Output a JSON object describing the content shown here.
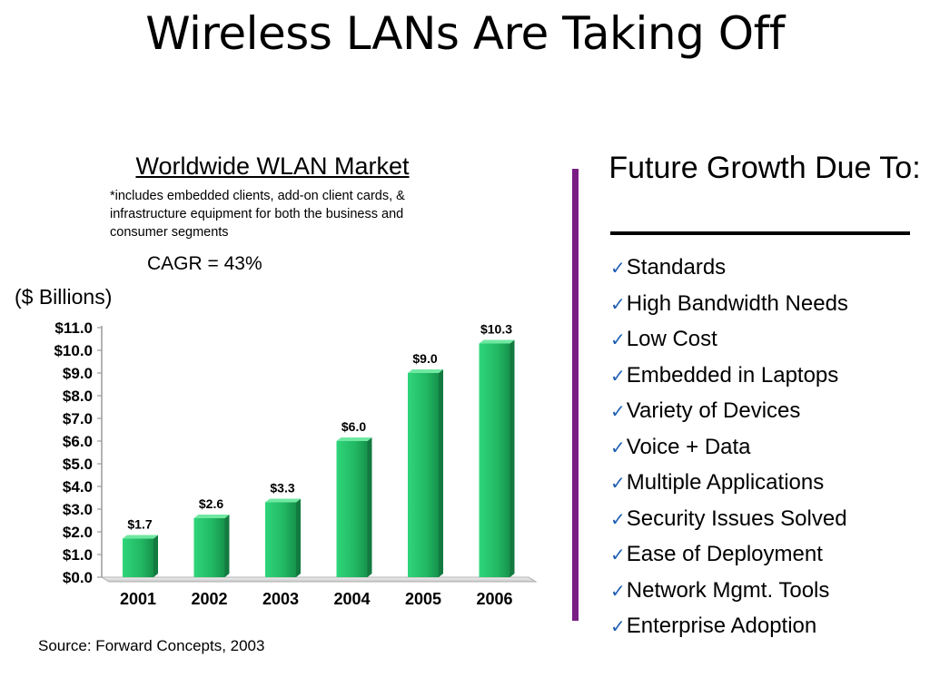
{
  "slide": {
    "title": "Wireless LANs Are Taking Off"
  },
  "left": {
    "chart_heading": "Worldwide WLAN Market",
    "note": "*includes embedded clients, add-on client cards, & infrastructure equipment for both the business and consumer segments",
    "cagr": "CAGR = 43%",
    "unit": "($ Billions)",
    "source": "Source:  Forward Concepts, 2003"
  },
  "right": {
    "heading": "Future Growth Due To:",
    "items": [
      "Standards",
      "High Bandwidth Needs",
      "Low Cost",
      "Embedded in Laptops",
      "Variety of Devices",
      "Voice + Data",
      "Multiple Applications",
      "Security Issues Solved",
      "Ease of Deployment",
      "Network Mgmt. Tools",
      "Enterprise Adoption"
    ],
    "bullet_icon": "check-icon"
  },
  "colors": {
    "divider": "#7a1e86",
    "bar": "#2bbf6a",
    "check": "#1f5fb3"
  },
  "chart_data": {
    "type": "bar",
    "categories": [
      "2001",
      "2002",
      "2003",
      "2004",
      "2005",
      "2006"
    ],
    "values": [
      1.7,
      2.6,
      3.3,
      6.0,
      9.0,
      10.3
    ],
    "data_labels": [
      "$1.7",
      "$2.6",
      "$3.3",
      "$6.0",
      "$9.0",
      "$10.3"
    ],
    "yticks": [
      0,
      1,
      2,
      3,
      4,
      5,
      6,
      7,
      8,
      9,
      10,
      11
    ],
    "ytick_labels": [
      "$0.0",
      "$1.0",
      "$2.0",
      "$3.0",
      "$4.0",
      "$5.0",
      "$6.0",
      "$7.0",
      "$8.0",
      "$9.0",
      "$10.0",
      "$11.0"
    ],
    "ylim": [
      0,
      11
    ],
    "title": "Worldwide WLAN Market",
    "ylabel": "($ Billions)",
    "grid": false,
    "legend": false
  }
}
